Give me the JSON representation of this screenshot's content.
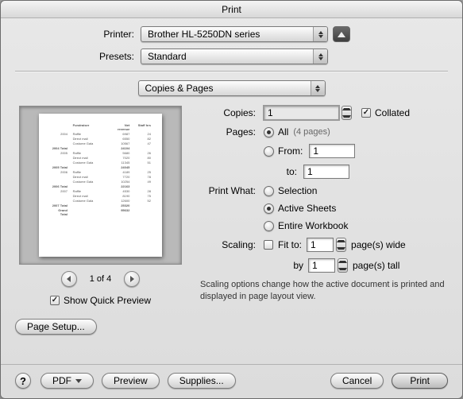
{
  "title": "Print",
  "labels": {
    "printer": "Printer:",
    "presets": "Presets:",
    "copies": "Copies:",
    "pages": "Pages:",
    "print_what": "Print What:",
    "scaling": "Scaling:",
    "collated": "Collated",
    "all": "All",
    "from": "From:",
    "to": "to:",
    "selection": "Selection",
    "active_sheets": "Active Sheets",
    "entire_workbook": "Entire Workbook",
    "fit_to": "Fit to:",
    "pages_wide": "page(s) wide",
    "by": "by",
    "pages_tall": "page(s) tall",
    "show_quick_preview": "Show Quick Preview",
    "page_setup": "Page Setup...",
    "pdf": "PDF",
    "preview": "Preview",
    "supplies": "Supplies...",
    "cancel": "Cancel",
    "print": "Print"
  },
  "printer_value": "Brother HL-5250DN series",
  "presets_value": "Standard",
  "section_value": "Copies & Pages",
  "copies_value": "1",
  "collated_checked": true,
  "pages_all_selected": true,
  "page_count_text": "(4 pages)",
  "from_value": "1",
  "to_value": "1",
  "print_what_selected": "active_sheets",
  "fit_to_checked": false,
  "fit_wide": "1",
  "fit_tall": "1",
  "scaling_note": "Scaling options change how the active document is printed and displayed in page layout view.",
  "show_quick_preview_checked": true,
  "pager_text": "1 of 4",
  "preview_rows": [
    {
      "c1": "",
      "c2": "Fundraiser",
      "c3": "Net revenue",
      "c4": "Staff hrs"
    },
    {
      "c1": "2004",
      "c2": "Raffle",
      "c3": "6987",
      "c4": "24"
    },
    {
      "c1": "",
      "c2": "Direct mail",
      "c3": "6550",
      "c4": "82"
    },
    {
      "c1": "",
      "c2": "Costume Gala",
      "c3": "10567",
      "c4": "47"
    },
    {
      "c1": "2004 Total",
      "c2": "",
      "c3": "24104",
      "c4": ""
    },
    {
      "c1": "2005",
      "c2": "Raffle",
      "c3": "5680",
      "c4": "26"
    },
    {
      "c1": "",
      "c2": "Direct mail",
      "c3": "7020",
      "c4": "80"
    },
    {
      "c1": "",
      "c2": "Costume Gala",
      "c3": "11345",
      "c4": "51"
    },
    {
      "c1": "2005 Total",
      "c2": "",
      "c3": "24045",
      "c4": ""
    },
    {
      "c1": "2006",
      "c2": "Raffle",
      "c3": "4189",
      "c4": "25"
    },
    {
      "c1": "",
      "c2": "Direct mail",
      "c3": "7720",
      "c4": "78"
    },
    {
      "c1": "",
      "c2": "Costume Gala",
      "c3": "10254",
      "c4": "49"
    },
    {
      "c1": "2006 Total",
      "c2": "",
      "c3": "22163",
      "c4": ""
    },
    {
      "c1": "2007",
      "c2": "Raffle",
      "c3": "4530",
      "c4": "28"
    },
    {
      "c1": "",
      "c2": "Direct mail",
      "c3": "8190",
      "c4": "75"
    },
    {
      "c1": "",
      "c2": "Costume Gala",
      "c3": "12600",
      "c4": "52"
    },
    {
      "c1": "2007 Total",
      "c2": "",
      "c3": "25320",
      "c4": ""
    },
    {
      "c1": "Grand Total",
      "c2": "",
      "c3": "95632",
      "c4": ""
    }
  ]
}
